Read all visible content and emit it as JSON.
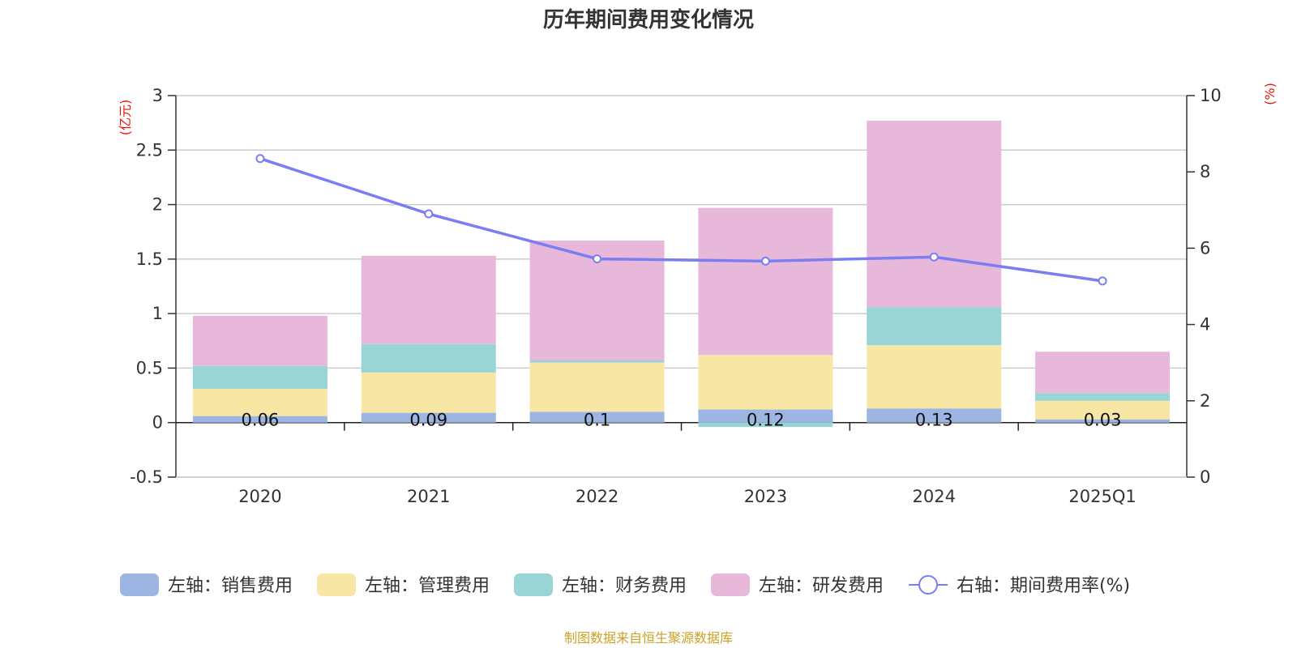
{
  "chart_data": {
    "type": "bar",
    "title": "历年期间费用变化情况",
    "left_axis_unit": "(亿元)",
    "right_axis_unit": "(%)",
    "categories": [
      "2020",
      "2021",
      "2022",
      "2023",
      "2024",
      "2025Q1"
    ],
    "y_left": {
      "min": -0.5,
      "max": 3,
      "ticks": [
        "-0.5",
        "0",
        "0.5",
        "1",
        "1.5",
        "2",
        "2.5",
        "3"
      ]
    },
    "y_right": {
      "min": 0,
      "max": 10,
      "ticks": [
        "0",
        "2",
        "4",
        "6",
        "8",
        "10"
      ]
    },
    "stacked": true,
    "grid": true,
    "series": [
      {
        "name": "左轴：销售费用",
        "type": "bar",
        "axis": "left",
        "color": "#9db5e2",
        "values": [
          0.06,
          0.09,
          0.1,
          0.12,
          0.13,
          0.03
        ],
        "labels": [
          "0.06",
          "0.09",
          "0.1",
          "0.12",
          "0.13",
          "0.03"
        ]
      },
      {
        "name": "左轴：管理费用",
        "type": "bar",
        "axis": "left",
        "color": "#f8e6a5",
        "values": [
          0.25,
          0.37,
          0.45,
          0.5,
          0.58,
          0.17
        ]
      },
      {
        "name": "左轴：财务费用",
        "type": "bar",
        "axis": "left",
        "color": "#98d5d4",
        "values": [
          0.21,
          0.26,
          0.02,
          -0.04,
          0.35,
          0.07
        ]
      },
      {
        "name": "左轴：研发费用",
        "type": "bar",
        "axis": "left",
        "color": "#e8b8da",
        "values": [
          0.46,
          0.81,
          1.1,
          1.35,
          1.71,
          0.38
        ]
      },
      {
        "name": "右轴：期间费用率(%)",
        "type": "line",
        "axis": "right",
        "color": "#7b7ef0",
        "values": [
          8.35,
          6.9,
          5.72,
          5.66,
          5.77,
          5.14
        ]
      }
    ],
    "legend_position": "bottom",
    "source": "制图数据来自恒生聚源数据库"
  }
}
